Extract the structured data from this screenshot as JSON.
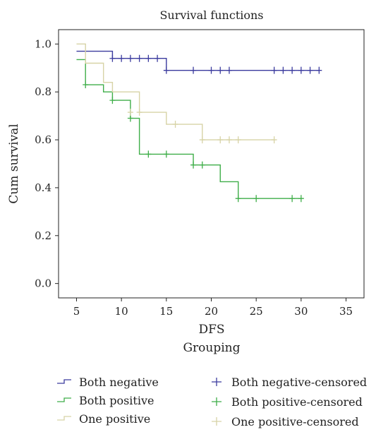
{
  "chart_data": {
    "type": "line",
    "title": "Survival functions",
    "xlabel": "DFS",
    "xlabel2": "Grouping",
    "ylabel": "Cum survival",
    "xlim": [
      3,
      37
    ],
    "ylim": [
      -0.06,
      1.06
    ],
    "x_ticks": [
      5,
      10,
      15,
      20,
      25,
      30,
      35
    ],
    "y_ticks": [
      0.0,
      0.2,
      0.4,
      0.6,
      0.8,
      1.0
    ],
    "y_tick_labels": [
      "0.0",
      "0.2",
      "0.4",
      "0.6",
      "0.8",
      "1.0"
    ],
    "step": true,
    "series": [
      {
        "name": "Both negative",
        "color": "#3b3b9e",
        "x": [
          5,
          9,
          15,
          32
        ],
        "y": [
          0.97,
          0.94,
          0.89,
          0.89
        ],
        "censored_name": "Both negative-censored",
        "censored": [
          [
            9,
            0.94
          ],
          [
            10,
            0.94
          ],
          [
            11,
            0.94
          ],
          [
            12,
            0.94
          ],
          [
            13,
            0.94
          ],
          [
            14,
            0.94
          ],
          [
            15,
            0.89
          ],
          [
            18,
            0.89
          ],
          [
            20,
            0.89
          ],
          [
            21,
            0.89
          ],
          [
            22,
            0.89
          ],
          [
            27,
            0.89
          ],
          [
            28,
            0.89
          ],
          [
            29,
            0.89
          ],
          [
            30,
            0.89
          ],
          [
            31,
            0.89
          ],
          [
            32,
            0.89
          ]
        ]
      },
      {
        "name": "Both positive",
        "color": "#3fae49",
        "x": [
          5,
          6,
          8,
          9,
          11,
          12,
          18,
          21,
          23,
          30
        ],
        "y": [
          0.935,
          0.83,
          0.8,
          0.765,
          0.69,
          0.54,
          0.495,
          0.425,
          0.355,
          0.355
        ],
        "censored_name": "Both positive-censored",
        "censored": [
          [
            6,
            0.83
          ],
          [
            9,
            0.765
          ],
          [
            11,
            0.69
          ],
          [
            13,
            0.54
          ],
          [
            15,
            0.54
          ],
          [
            18,
            0.495
          ],
          [
            19,
            0.495
          ],
          [
            23,
            0.355
          ],
          [
            25,
            0.355
          ],
          [
            29,
            0.355
          ],
          [
            30,
            0.355
          ]
        ]
      },
      {
        "name": "One positive",
        "color": "#d7d3a6",
        "x": [
          5,
          6,
          8,
          9,
          12,
          15,
          19,
          27
        ],
        "y": [
          1.0,
          0.92,
          0.84,
          0.8,
          0.715,
          0.665,
          0.6,
          0.6
        ],
        "censored_name": "One positive-censored",
        "censored": [
          [
            11,
            0.715
          ],
          [
            12,
            0.715
          ],
          [
            16,
            0.665
          ],
          [
            19,
            0.6
          ],
          [
            21,
            0.6
          ],
          [
            22,
            0.6
          ],
          [
            23,
            0.6
          ],
          [
            27,
            0.6
          ]
        ]
      }
    ],
    "legend_placement": "bottom"
  }
}
